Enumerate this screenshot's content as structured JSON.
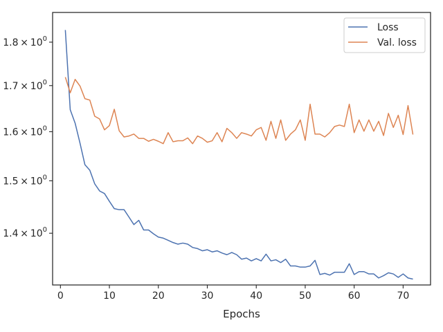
{
  "chart_data": {
    "type": "line",
    "title": "",
    "xlabel": "Epochs",
    "ylabel": "",
    "xlim": [
      -1.6,
      75.6
    ],
    "ylim": [
      1.3079,
      1.8717
    ],
    "yscale": "log",
    "grid": false,
    "legend_position": "top-right",
    "x_ticks": [
      0,
      10,
      20,
      30,
      40,
      50,
      60,
      70
    ],
    "x_tick_labels": [
      "0",
      "10",
      "20",
      "30",
      "40",
      "50",
      "60",
      "70"
    ],
    "y_ticks": [
      1.4,
      1.5,
      1.6,
      1.7,
      1.8
    ],
    "y_tick_labels": [
      {
        "base": "1.4",
        "times": "×",
        "pow": "10",
        "exp": "0"
      },
      {
        "base": "1.5",
        "times": "×",
        "pow": "10",
        "exp": "0"
      },
      {
        "base": "1.6",
        "times": "×",
        "pow": "10",
        "exp": "0"
      },
      {
        "base": "1.7",
        "times": "×",
        "pow": "10",
        "exp": "0"
      },
      {
        "base": "1.8",
        "times": "×",
        "pow": "10",
        "exp": "0"
      }
    ],
    "x": [
      1,
      2,
      3,
      4,
      5,
      6,
      7,
      8,
      9,
      10,
      11,
      12,
      13,
      14,
      15,
      16,
      17,
      18,
      19,
      20,
      21,
      22,
      23,
      24,
      25,
      26,
      27,
      28,
      29,
      30,
      31,
      32,
      33,
      34,
      35,
      36,
      37,
      38,
      39,
      40,
      41,
      42,
      43,
      44,
      45,
      46,
      47,
      48,
      49,
      50,
      51,
      52,
      53,
      54,
      55,
      56,
      57,
      58,
      59,
      60,
      61,
      62,
      63,
      64,
      65,
      66,
      67,
      68,
      69,
      70,
      71,
      72
    ],
    "series": [
      {
        "name": "Loss",
        "color": "#4c72b0",
        "values": [
          1.829,
          1.647,
          1.618,
          1.576,
          1.532,
          1.521,
          1.494,
          1.48,
          1.475,
          1.46,
          1.446,
          1.444,
          1.444,
          1.43,
          1.416,
          1.424,
          1.406,
          1.406,
          1.399,
          1.393,
          1.391,
          1.387,
          1.383,
          1.38,
          1.382,
          1.38,
          1.374,
          1.372,
          1.368,
          1.37,
          1.366,
          1.368,
          1.364,
          1.361,
          1.365,
          1.361,
          1.353,
          1.355,
          1.35,
          1.354,
          1.35,
          1.362,
          1.35,
          1.352,
          1.347,
          1.353,
          1.341,
          1.341,
          1.339,
          1.339,
          1.341,
          1.351,
          1.326,
          1.328,
          1.325,
          1.33,
          1.33,
          1.33,
          1.345,
          1.326,
          1.331,
          1.331,
          1.327,
          1.327,
          1.32,
          1.324,
          1.329,
          1.327,
          1.321,
          1.327,
          1.32,
          1.318
        ]
      },
      {
        "name": "Val. loss",
        "color": "#dd8452",
        "values": [
          1.719,
          1.684,
          1.714,
          1.699,
          1.671,
          1.668,
          1.633,
          1.627,
          1.604,
          1.613,
          1.648,
          1.602,
          1.589,
          1.591,
          1.595,
          1.586,
          1.586,
          1.58,
          1.584,
          1.58,
          1.575,
          1.598,
          1.579,
          1.581,
          1.581,
          1.587,
          1.575,
          1.591,
          1.586,
          1.578,
          1.581,
          1.598,
          1.579,
          1.607,
          1.598,
          1.586,
          1.598,
          1.595,
          1.591,
          1.604,
          1.609,
          1.582,
          1.622,
          1.586,
          1.625,
          1.582,
          1.595,
          1.604,
          1.625,
          1.582,
          1.659,
          1.595,
          1.595,
          1.589,
          1.598,
          1.611,
          1.614,
          1.611,
          1.659,
          1.598,
          1.625,
          1.601,
          1.625,
          1.601,
          1.622,
          1.592,
          1.639,
          1.609,
          1.635,
          1.594,
          1.656,
          1.594
        ]
      }
    ]
  }
}
